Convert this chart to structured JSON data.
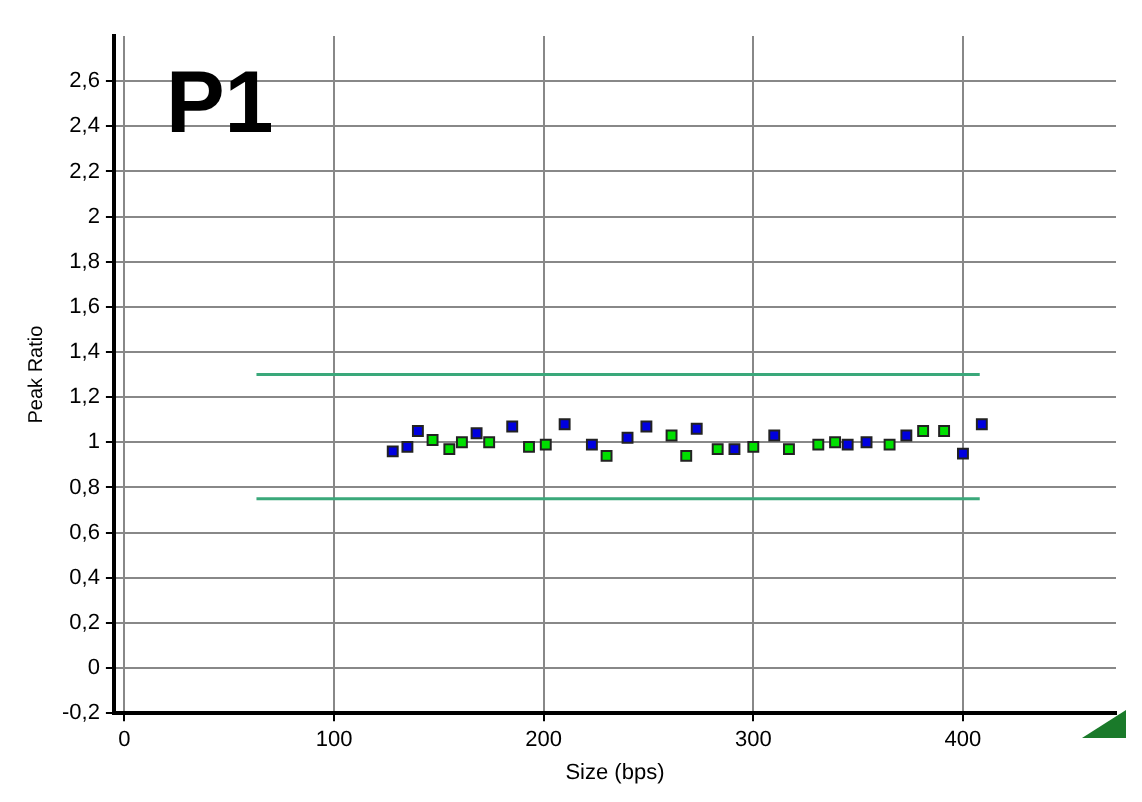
{
  "chart_data": {
    "type": "scatter",
    "xlabel": "Size (bps)",
    "ylabel": "Peak Ratio",
    "annotations": [
      "P1"
    ],
    "marker": "square",
    "grid": true,
    "legend": false,
    "xlim": [
      -5,
      473
    ],
    "xticks": [
      0,
      100,
      200,
      300,
      400
    ],
    "ylim": [
      -0.2,
      2.8
    ],
    "yticks": [
      {
        "value": -0.2,
        "label": "-0,2"
      },
      {
        "value": 0,
        "label": "0"
      },
      {
        "value": 0.2,
        "label": "0,2"
      },
      {
        "value": 0.4,
        "label": "0,4"
      },
      {
        "value": 0.6,
        "label": "0,6"
      },
      {
        "value": 0.8,
        "label": "0,8"
      },
      {
        "value": 1,
        "label": "1"
      },
      {
        "value": 1.2,
        "label": "1,2"
      },
      {
        "value": 1.4,
        "label": "1,4"
      },
      {
        "value": 1.6,
        "label": "1,6"
      },
      {
        "value": 1.8,
        "label": "1,8"
      },
      {
        "value": 2,
        "label": "2"
      },
      {
        "value": 2.2,
        "label": "2,2"
      },
      {
        "value": 2.4,
        "label": "2,4"
      },
      {
        "value": 2.6,
        "label": "2,6"
      }
    ],
    "series": [
      {
        "color": "#0000e0",
        "x": [
          128,
          135,
          140,
          168,
          185,
          210,
          223,
          240,
          249,
          273,
          291,
          310,
          345,
          354,
          373,
          400,
          409
        ],
        "values": [
          0.96,
          0.98,
          1.05,
          1.04,
          1.07,
          1.08,
          0.99,
          1.02,
          1.07,
          1.06,
          0.97,
          1.03,
          0.99,
          1.0,
          1.03,
          0.95,
          1.08
        ]
      },
      {
        "color": "#00e000",
        "x": [
          147,
          155,
          161,
          174,
          193,
          201,
          230,
          261,
          268,
          283,
          300,
          317,
          331,
          339,
          365,
          381,
          391
        ],
        "values": [
          1.01,
          0.97,
          1.0,
          1.0,
          0.98,
          0.99,
          0.94,
          1.03,
          0.94,
          0.97,
          0.98,
          0.97,
          0.99,
          1.0,
          0.99,
          1.05,
          1.05
        ]
      },
      {
        "type": "line",
        "color": "#3aa87a",
        "marker": "none",
        "x": [
          63,
          408
        ],
        "values": [
          1.3,
          1.3
        ]
      },
      {
        "type": "line",
        "color": "#3aa87a",
        "marker": "none",
        "x": [
          63,
          408
        ],
        "values": [
          0.75,
          0.75
        ]
      }
    ]
  }
}
